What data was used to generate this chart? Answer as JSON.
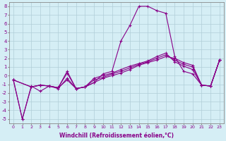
{
  "xlabel": "Windchill (Refroidissement éolien,°C)",
  "background_color": "#d5eef5",
  "grid_color": "#b0cdd8",
  "line_color": "#880088",
  "ylim": [
    -5.5,
    8.5
  ],
  "xlim": [
    -0.5,
    23.5
  ],
  "yticks": [
    -5,
    -4,
    -3,
    -2,
    -1,
    0,
    1,
    2,
    3,
    4,
    5,
    6,
    7,
    8
  ],
  "xticks": [
    0,
    1,
    2,
    3,
    4,
    5,
    6,
    7,
    8,
    9,
    10,
    11,
    12,
    13,
    14,
    15,
    16,
    17,
    18,
    19,
    20,
    21,
    22,
    23
  ],
  "series1": [
    [
      0,
      -0.5
    ],
    [
      1,
      -5.0
    ],
    [
      2,
      -1.2
    ],
    [
      3,
      -1.8
    ],
    [
      4,
      -1.2
    ],
    [
      5,
      -1.5
    ],
    [
      6,
      -0.3
    ],
    [
      7,
      -1.5
    ],
    [
      8,
      -1.3
    ],
    [
      9,
      -0.8
    ],
    [
      10,
      0.2
    ],
    [
      11,
      0.5
    ],
    [
      12,
      4.0
    ],
    [
      13,
      5.8
    ],
    [
      14,
      8.0
    ],
    [
      15,
      8.0
    ],
    [
      16,
      7.5
    ],
    [
      17,
      7.2
    ],
    [
      18,
      2.2
    ],
    [
      19,
      0.5
    ],
    [
      20,
      0.2
    ],
    [
      21,
      -1.1
    ],
    [
      22,
      -1.2
    ],
    [
      23,
      1.8
    ]
  ],
  "series2": [
    [
      0,
      -0.5
    ],
    [
      1,
      -5.0
    ],
    [
      2,
      -1.3
    ],
    [
      3,
      -1.1
    ],
    [
      4,
      -1.2
    ],
    [
      5,
      -1.4
    ],
    [
      6,
      -0.5
    ],
    [
      7,
      -1.5
    ],
    [
      8,
      -1.3
    ],
    [
      9,
      -0.8
    ],
    [
      10,
      -0.3
    ],
    [
      11,
      0.0
    ],
    [
      12,
      0.3
    ],
    [
      13,
      0.7
    ],
    [
      14,
      1.2
    ],
    [
      15,
      1.5
    ],
    [
      16,
      1.8
    ],
    [
      17,
      2.2
    ],
    [
      18,
      2.0
    ],
    [
      19,
      1.5
    ],
    [
      20,
      1.2
    ],
    [
      21,
      -1.1
    ],
    [
      22,
      -1.2
    ],
    [
      23,
      1.8
    ]
  ],
  "series3": [
    [
      0,
      -0.5
    ],
    [
      2,
      -1.3
    ],
    [
      3,
      -1.1
    ],
    [
      4,
      -1.2
    ],
    [
      5,
      -1.4
    ],
    [
      6,
      0.3
    ],
    [
      7,
      -1.5
    ],
    [
      8,
      -1.3
    ],
    [
      9,
      -0.5
    ],
    [
      10,
      -0.2
    ],
    [
      11,
      0.2
    ],
    [
      12,
      0.5
    ],
    [
      13,
      0.9
    ],
    [
      14,
      1.3
    ],
    [
      15,
      1.6
    ],
    [
      16,
      2.0
    ],
    [
      17,
      2.4
    ],
    [
      18,
      1.8
    ],
    [
      19,
      1.3
    ],
    [
      20,
      1.0
    ],
    [
      21,
      -1.1
    ],
    [
      22,
      -1.2
    ],
    [
      23,
      1.8
    ]
  ],
  "series4": [
    [
      0,
      -0.5
    ],
    [
      2,
      -1.3
    ],
    [
      3,
      -1.1
    ],
    [
      4,
      -1.2
    ],
    [
      5,
      -1.4
    ],
    [
      6,
      0.5
    ],
    [
      7,
      -1.5
    ],
    [
      8,
      -1.3
    ],
    [
      9,
      -0.3
    ],
    [
      10,
      0.0
    ],
    [
      11,
      0.3
    ],
    [
      12,
      0.7
    ],
    [
      13,
      1.1
    ],
    [
      14,
      1.4
    ],
    [
      15,
      1.7
    ],
    [
      16,
      2.2
    ],
    [
      17,
      2.6
    ],
    [
      18,
      1.6
    ],
    [
      19,
      1.1
    ],
    [
      20,
      0.7
    ],
    [
      21,
      -1.1
    ],
    [
      22,
      -1.2
    ],
    [
      23,
      1.8
    ]
  ]
}
